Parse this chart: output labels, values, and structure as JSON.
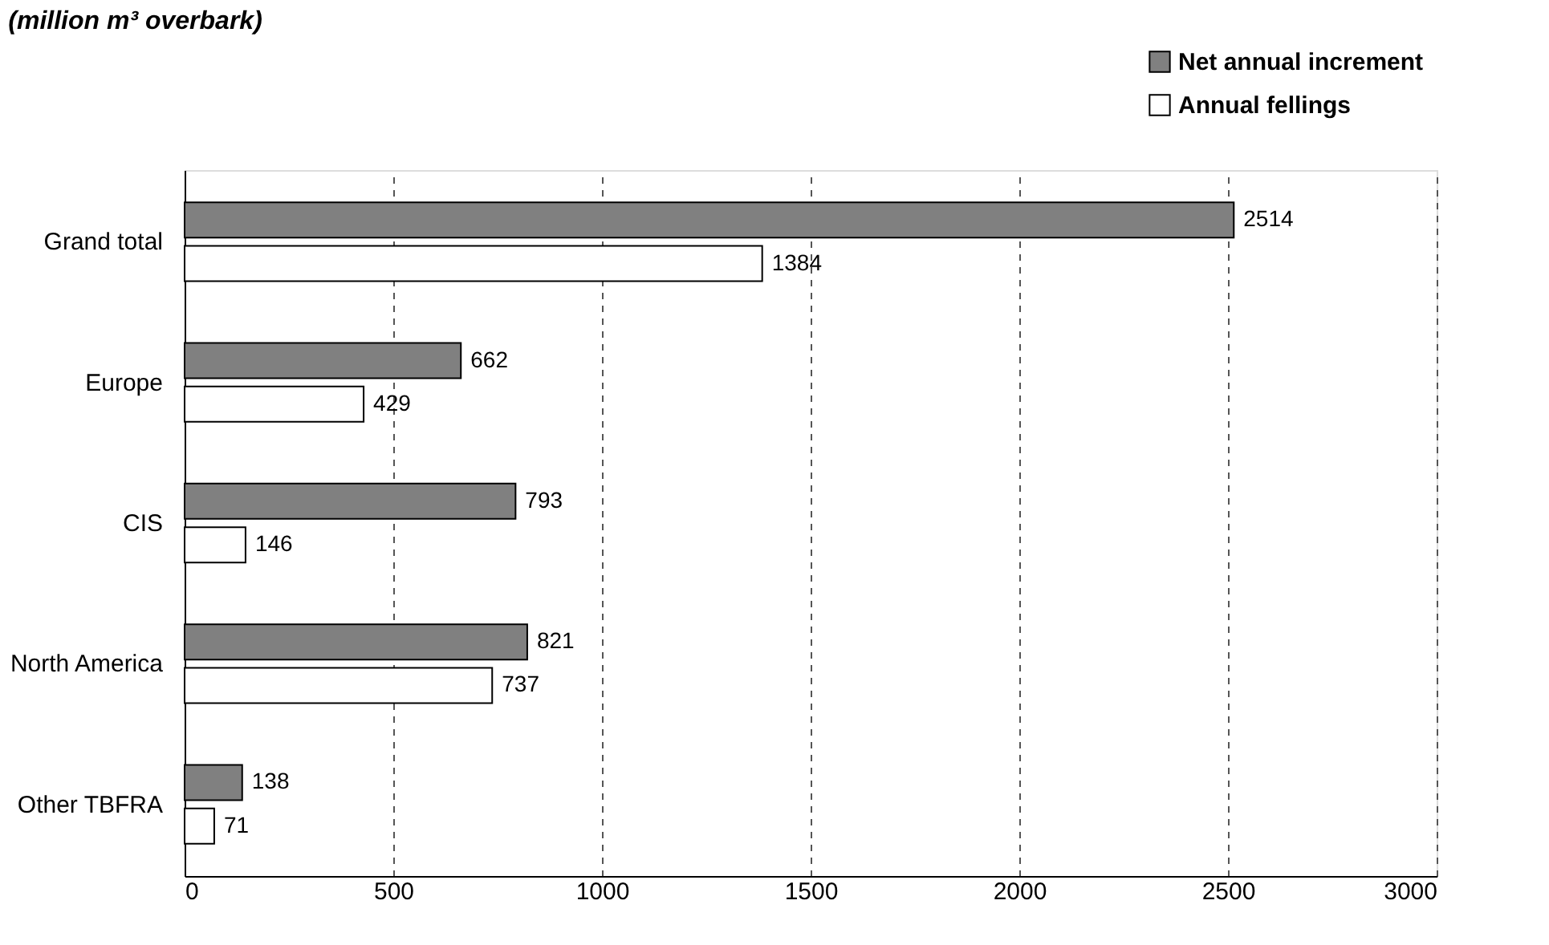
{
  "chart_data": {
    "type": "bar",
    "orientation": "horizontal",
    "title": "(million m³ overbark)",
    "categories": [
      "Grand total",
      "Europe",
      "CIS",
      "North America",
      "Other TBFRA"
    ],
    "series": [
      {
        "name": "Net annual increment",
        "color": "#808080",
        "values": [
          2514,
          662,
          793,
          821,
          138
        ]
      },
      {
        "name": "Annual fellings",
        "color": "#ffffff",
        "values": [
          1384,
          429,
          146,
          737,
          71
        ]
      }
    ],
    "xlim": [
      0,
      3000
    ],
    "xticks": [
      0,
      500,
      1000,
      1500,
      2000,
      2500,
      3000
    ],
    "grid": "x",
    "legend": "top right",
    "data_labels": true
  }
}
